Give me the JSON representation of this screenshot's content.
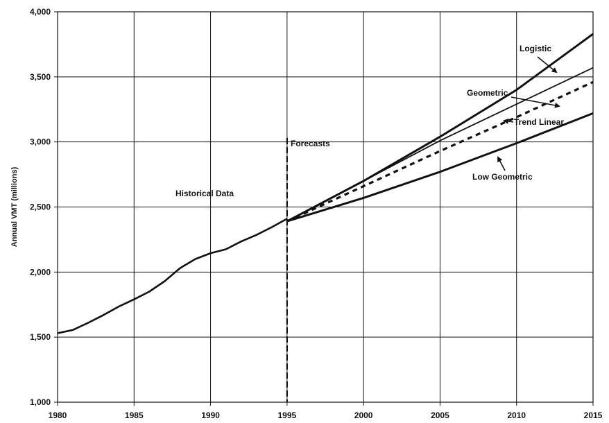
{
  "chart_data": {
    "type": "line",
    "title": "",
    "xlabel": "",
    "ylabel": "Annual VMT (millions)",
    "xlim": [
      1980,
      2015
    ],
    "ylim": [
      1000,
      4000
    ],
    "grid": true,
    "x_ticks": [
      "1980",
      "1985",
      "1990",
      "1995",
      "2000",
      "2005",
      "2010",
      "2015"
    ],
    "y_ticks": [
      "1,000",
      "1,500",
      "2,000",
      "2,500",
      "3,000",
      "3,500",
      "4,000"
    ],
    "divider_x": 1995,
    "annotations": {
      "historical": "Historical Data",
      "forecasts": "Forecasts",
      "logistic": "Logistic",
      "geometric": "Geometric",
      "trend_linear": "Trend Linear",
      "low_geometric": "Low Geometric"
    },
    "series": [
      {
        "key": "historical",
        "x": [
          1980,
          1981,
          1982,
          1983,
          1984,
          1985,
          1986,
          1987,
          1988,
          1989,
          1990,
          1991,
          1992,
          1993,
          1994,
          1995
        ],
        "y": [
          1530,
          1555,
          1610,
          1670,
          1735,
          1790,
          1850,
          1930,
          2030,
          2100,
          2145,
          2175,
          2235,
          2285,
          2345,
          2410
        ]
      },
      {
        "key": "logistic",
        "x": [
          1995,
          2000,
          2005,
          2010,
          2015
        ],
        "y": [
          2390,
          2700,
          3040,
          3400,
          3830
        ]
      },
      {
        "key": "geometric",
        "x": [
          1995,
          2000,
          2005,
          2010,
          2015
        ],
        "y": [
          2390,
          2700,
          3010,
          3290,
          3570
        ]
      },
      {
        "key": "trend_linear",
        "x": [
          1995,
          2000,
          2005,
          2010,
          2015
        ],
        "y": [
          2390,
          2660,
          2930,
          3190,
          3460
        ]
      },
      {
        "key": "low_geometric",
        "x": [
          1995,
          2000,
          2005,
          2010,
          2015
        ],
        "y": [
          2390,
          2570,
          2770,
          2990,
          3220
        ]
      }
    ]
  }
}
